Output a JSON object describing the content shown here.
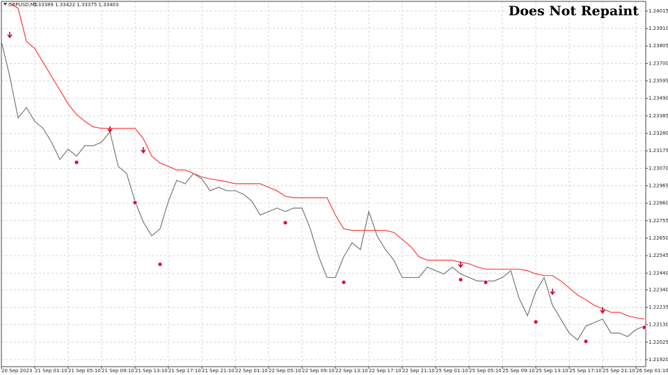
{
  "chart_data": {
    "type": "line",
    "symbol": "GBPUSD,M5",
    "ohlc_text": "1.33389 1.33422 1.33375 1.33403",
    "title": "Does Not Repaint",
    "grid": true,
    "ylim": [
      1.21878,
      1.24073
    ],
    "yticks": [
      1.24015,
      {
        "value": 1.2391,
        "label": "1.23910"
      },
      1.23805,
      {
        "value": 1.237,
        "label": "1.23700"
      },
      1.23595,
      {
        "value": 1.2349,
        "label": "1.23490"
      },
      1.23385,
      {
        "value": 1.2328,
        "label": "1.23280"
      },
      1.23175,
      {
        "value": 1.2307,
        "label": "1.23070"
      },
      1.22965,
      {
        "value": 1.2286,
        "label": "1.22860"
      },
      1.22755,
      {
        "value": 1.2265,
        "label": "1.22650"
      },
      1.22545,
      {
        "value": 1.2244,
        "label": "1.22440"
      },
      {
        "value": 1.2234,
        "label": "1.22340"
      },
      1.22235,
      {
        "value": 1.2213,
        "label": "1.22130"
      },
      1.22025,
      {
        "value": 1.2192,
        "label": "1.21920"
      }
    ],
    "categories": [
      "20 Sep 2023",
      null,
      null,
      null,
      "21 Sep 01:10",
      null,
      null,
      null,
      "21 Sep 05:10",
      null,
      null,
      null,
      "21 Sep 09:10",
      null,
      null,
      null,
      "21 Sep 13:10",
      null,
      null,
      null,
      "21 Sep 17:10",
      null,
      null,
      null,
      "21 Sep 21:10",
      null,
      null,
      null,
      "22 Sep 01:10",
      null,
      null,
      null,
      "22 Sep 05:10",
      null,
      null,
      null,
      "22 Sep 09:10",
      null,
      null,
      null,
      "22 Sep 13:10",
      null,
      null,
      null,
      "22 Sep 17:10",
      null,
      null,
      null,
      "22 Sep 21:10",
      null,
      null,
      null,
      "25 Sep 01:10",
      null,
      null,
      null,
      "25 Sep 05:10",
      null,
      null,
      null,
      "25 Sep 09:10",
      null,
      null,
      null,
      "25 Sep 13:10",
      null,
      null,
      null,
      "25 Sep 17:10",
      null,
      null,
      null,
      "25 Sep 21:10",
      null,
      null,
      null,
      "26 Sep 01:10",
      null
    ],
    "series": [
      {
        "color": "#777777",
        "marker": "line",
        "values": [
          1.23832,
          1.23623,
          1.23373,
          1.23435,
          1.23352,
          1.2331,
          1.23227,
          1.23123,
          1.23185,
          1.23143,
          1.23206,
          1.23206,
          1.23227,
          1.23289,
          1.23081,
          1.23039,
          1.22872,
          1.22747,
          1.22664,
          1.22706,
          1.22872,
          1.22998,
          1.22977,
          1.23039,
          1.23006,
          1.22935,
          1.22956,
          1.22935,
          1.22935,
          1.22914,
          1.22872,
          1.22789,
          1.2281,
          1.22831,
          1.2281,
          1.22831,
          1.22831,
          1.22706,
          1.22539,
          1.22414,
          1.22414,
          1.22539,
          1.22622,
          1.22581,
          1.2281,
          1.22664,
          1.22581,
          1.22518,
          1.22414,
          1.22414,
          1.22414,
          1.22476,
          1.22455,
          1.22435,
          1.22476,
          1.22435,
          1.22414,
          1.22393,
          1.22393,
          1.22393,
          1.22414,
          1.22455,
          1.22289,
          1.22184,
          1.2233,
          1.22414,
          1.22247,
          1.22164,
          1.2208,
          1.22038,
          1.22122,
          1.22143,
          1.22164,
          1.2208,
          1.2208,
          1.22059,
          1.22101,
          1.22122
        ]
      },
      {
        "color": "#ff3b3b",
        "marker": "line",
        "values": [
          null,
          1.24061,
          1.24032,
          1.23832,
          1.2379,
          1.23706,
          1.23623,
          1.2354,
          1.23456,
          1.23394,
          1.23352,
          1.23319,
          1.2331,
          1.2331,
          1.2331,
          1.2331,
          1.2331,
          1.23248,
          1.23143,
          1.23102,
          1.23081,
          1.2306,
          1.2306,
          1.23039,
          1.23018,
          1.23006,
          1.22998,
          1.22989,
          1.22977,
          1.22977,
          1.22977,
          1.22977,
          1.22956,
          1.22935,
          1.22902,
          1.22893,
          1.22893,
          1.22893,
          1.22893,
          1.22893,
          1.22789,
          1.22706,
          1.22697,
          1.22697,
          1.22697,
          1.22697,
          1.22697,
          1.22685,
          1.22643,
          1.22601,
          1.22539,
          1.22518,
          1.22518,
          1.22518,
          1.22518,
          1.22505,
          1.22497,
          1.22476,
          1.22464,
          1.22464,
          1.22464,
          1.22464,
          1.22464,
          1.22455,
          1.22435,
          1.22426,
          1.22426,
          1.22393,
          1.22351,
          1.22309,
          1.2228,
          1.22247,
          1.22226,
          1.22205,
          1.22205,
          1.22184,
          1.22172,
          1.22164
        ]
      },
      {
        "color": "#cc0033",
        "marker": "arrow-down",
        "values": [
          null,
          1.23873,
          null,
          null,
          null,
          null,
          null,
          null,
          null,
          null,
          null,
          null,
          null,
          1.23306,
          null,
          null,
          null,
          1.23181,
          null,
          null,
          null,
          null,
          null,
          null,
          null,
          null,
          null,
          null,
          null,
          null,
          null,
          null,
          null,
          null,
          null,
          null,
          null,
          null,
          null,
          null,
          null,
          null,
          null,
          null,
          null,
          null,
          null,
          null,
          null,
          null,
          null,
          null,
          null,
          null,
          null,
          1.22493,
          null,
          null,
          null,
          null,
          null,
          null,
          null,
          null,
          null,
          null,
          1.2233,
          null,
          null,
          null,
          null,
          null,
          1.22218,
          null,
          null,
          null,
          null,
          null
        ]
      },
      {
        "color": "#dd1133",
        "marker": "circle",
        "values": [
          null,
          null,
          null,
          null,
          null,
          null,
          null,
          null,
          null,
          1.23106,
          null,
          null,
          null,
          null,
          null,
          null,
          1.22864,
          null,
          null,
          1.22493,
          null,
          null,
          null,
          null,
          null,
          null,
          null,
          null,
          null,
          null,
          null,
          null,
          null,
          null,
          1.22743,
          null,
          null,
          null,
          null,
          null,
          null,
          1.22385,
          null,
          null,
          null,
          null,
          null,
          null,
          null,
          null,
          null,
          null,
          null,
          null,
          null,
          1.22401,
          null,
          null,
          1.22385,
          null,
          null,
          null,
          null,
          null,
          1.22147,
          null,
          null,
          null,
          null,
          null,
          1.2203,
          null,
          null,
          null,
          null,
          null,
          null,
          1.22114
        ]
      }
    ]
  }
}
